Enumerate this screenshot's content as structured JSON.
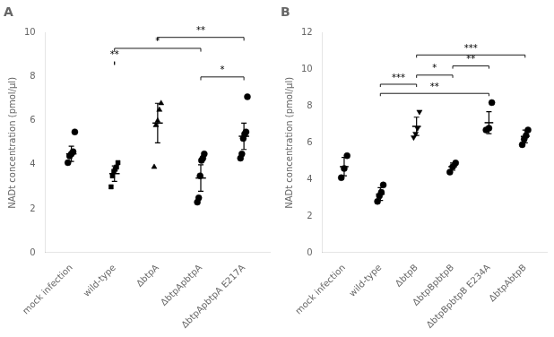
{
  "chart_data": [
    {
      "type": "scatter",
      "title": "A",
      "categories": [
        "mock infection",
        "wild-type",
        "ΔbtpA",
        "ΔbtpApbtpA",
        "ΔbtpApbtpA E217A"
      ],
      "values": [
        4.5,
        3.6,
        5.9,
        3.4,
        5.3
      ],
      "errors": [
        0.35,
        0.35,
        0.9,
        0.6,
        0.6
      ],
      "points": [
        [
          4.1,
          4.4,
          4.5,
          4.6,
          5.5
        ],
        [
          3.0,
          3.5,
          3.7,
          3.8,
          3.9,
          4.1
        ],
        [
          3.9,
          5.8,
          6.0,
          6.5,
          6.8
        ],
        [
          2.3,
          2.5,
          3.5,
          4.2,
          4.3,
          4.5
        ],
        [
          4.3,
          4.5,
          5.2,
          5.4,
          5.5,
          7.1
        ]
      ],
      "marker": [
        "circle",
        "square",
        "triangle-up",
        "circle",
        "circle"
      ],
      "annotations": [
        {
          "from": "wild-type",
          "to": "wild-type",
          "y": 8.7,
          "label": "**"
        },
        {
          "from": "wild-type",
          "to": "ΔbtpApbtpA",
          "y": 9.3,
          "label": "*"
        },
        {
          "from": "ΔbtpA",
          "to": "ΔbtpApbtpA E217A",
          "y": 9.8,
          "label": "**"
        },
        {
          "from": "ΔbtpApbtpA",
          "to": "ΔbtpApbtpA E217A",
          "y": 8.0,
          "label": "*"
        }
      ],
      "y_label": "NADt concentration (pmol/µl)",
      "ylim": [
        0,
        10
      ],
      "yticks": [
        0,
        2,
        4,
        6,
        8,
        10
      ],
      "color": "#000000",
      "grid": false
    },
    {
      "type": "scatter",
      "title": "B",
      "categories": [
        "mock infection",
        "wild-type",
        "ΔbtpB",
        "ΔbtpBpbtpB",
        "ΔbtpBpbtpB E234A",
        "ΔbtpAbtpB"
      ],
      "values": [
        4.7,
        3.2,
        6.9,
        4.7,
        7.1,
        6.35
      ],
      "errors": [
        0.5,
        0.35,
        0.5,
        0.2,
        0.6,
        0.35
      ],
      "points": [
        [
          4.1,
          4.6,
          5.3
        ],
        [
          2.8,
          3.1,
          3.3,
          3.7
        ],
        [
          6.3,
          6.5,
          6.8,
          7.7
        ],
        [
          4.4,
          4.7,
          4.9
        ],
        [
          6.7,
          6.8,
          8.2
        ],
        [
          5.9,
          6.2,
          6.4,
          6.7
        ]
      ],
      "marker": [
        "circle",
        "circle",
        "triangle-down",
        "circle",
        "circle",
        "circle"
      ],
      "annotations": [
        {
          "from": "wild-type",
          "to": "ΔbtpB",
          "y": 9.2,
          "label": "***"
        },
        {
          "from": "wild-type",
          "to": "ΔbtpBpbtpB E234A",
          "y": 8.7,
          "label": "**"
        },
        {
          "from": "ΔbtpB",
          "to": "ΔbtpBpbtpB",
          "y": 9.7,
          "label": "*"
        },
        {
          "from": "ΔbtpBpbtpB",
          "to": "ΔbtpBpbtpB E234A",
          "y": 10.2,
          "label": "**"
        },
        {
          "from": "ΔbtpB",
          "to": "ΔbtpAbtpB",
          "y": 10.8,
          "label": "***"
        }
      ],
      "y_label": "NADt concentration (pmol/µl)",
      "ylim": [
        0,
        12
      ],
      "yticks": [
        0,
        2,
        4,
        6,
        8,
        10,
        12
      ],
      "color": "#000000",
      "grid": false
    }
  ]
}
